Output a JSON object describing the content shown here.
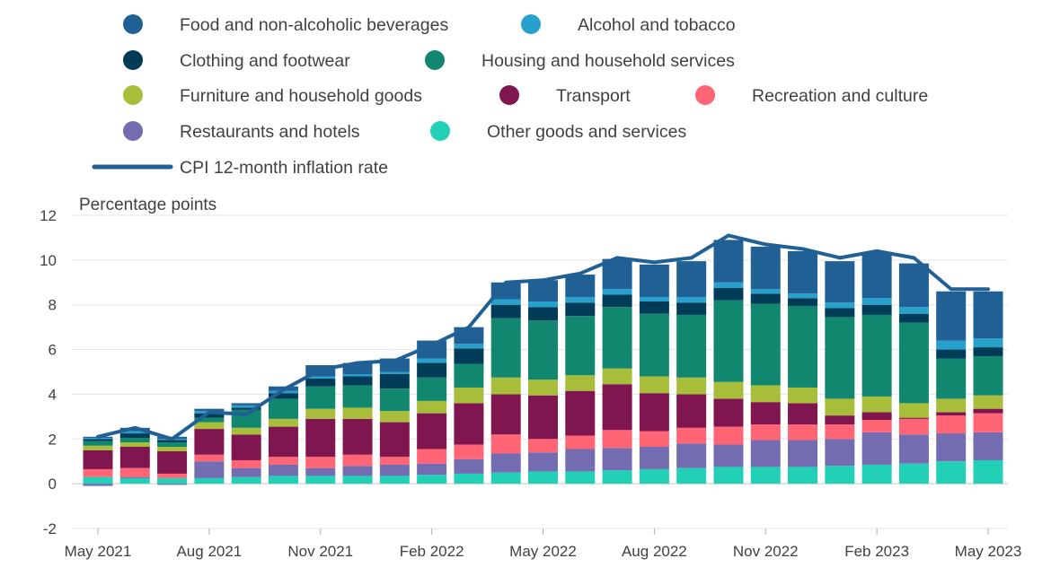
{
  "chart_data": {
    "type": "bar",
    "stacked": true,
    "ylabel": "Percentage points",
    "ylim": [
      -2,
      12
    ],
    "yticks": [
      -2,
      0,
      2,
      4,
      6,
      8,
      10,
      12
    ],
    "grid": true,
    "legend_position": "top",
    "categories": [
      "May 2021",
      "Jun 2021",
      "Jul 2021",
      "Aug 2021",
      "Sep 2021",
      "Oct 2021",
      "Nov 2021",
      "Dec 2021",
      "Jan 2022",
      "Feb 2022",
      "Mar 2022",
      "Apr 2022",
      "May 2022",
      "Jun 2022",
      "Jul 2022",
      "Aug 2022",
      "Sep 2022",
      "Oct 2022",
      "Nov 2022",
      "Dec 2022",
      "Jan 2023",
      "Feb 2023",
      "Mar 2023",
      "Apr 2023",
      "May 2023"
    ],
    "xtick_labels": [
      {
        "index": 0,
        "label": "May 2021"
      },
      {
        "index": 3,
        "label": "Aug 2021"
      },
      {
        "index": 6,
        "label": "Nov 2021"
      },
      {
        "index": 9,
        "label": "Feb 2022"
      },
      {
        "index": 12,
        "label": "May 2022"
      },
      {
        "index": 15,
        "label": "Aug 2022"
      },
      {
        "index": 18,
        "label": "Nov 2022"
      },
      {
        "index": 21,
        "label": "Feb 2023"
      },
      {
        "index": 24,
        "label": "May 2023"
      }
    ],
    "series": [
      {
        "name": "Other goods and services",
        "color": "#22d0b6",
        "values": [
          0.3,
          0.25,
          0.25,
          0.25,
          0.3,
          0.35,
          0.35,
          0.35,
          0.35,
          0.4,
          0.45,
          0.5,
          0.55,
          0.55,
          0.6,
          0.65,
          0.7,
          0.75,
          0.75,
          0.75,
          0.8,
          0.85,
          0.9,
          1.0,
          1.05
        ]
      },
      {
        "name": "Restaurants and hotels",
        "color": "#746cb1",
        "values": [
          -0.1,
          0.05,
          -0.05,
          0.75,
          0.4,
          0.5,
          0.35,
          0.45,
          0.5,
          0.5,
          0.65,
          0.85,
          0.85,
          1.0,
          1.0,
          1.0,
          1.1,
          1.0,
          1.2,
          1.2,
          1.2,
          1.45,
          1.3,
          1.25,
          1.25
        ]
      },
      {
        "name": "Recreation and culture",
        "color": "#ff6575",
        "values": [
          0.35,
          0.4,
          0.2,
          0.3,
          0.35,
          0.35,
          0.5,
          0.5,
          0.35,
          0.65,
          0.65,
          0.85,
          0.6,
          0.6,
          0.8,
          0.7,
          0.7,
          0.8,
          0.7,
          0.7,
          0.65,
          0.55,
          0.7,
          0.8,
          0.85
        ]
      },
      {
        "name": "Transport",
        "color": "#801650",
        "values": [
          0.85,
          0.95,
          1.0,
          1.15,
          1.15,
          1.35,
          1.7,
          1.6,
          1.55,
          1.6,
          1.85,
          1.8,
          1.95,
          2.0,
          2.05,
          1.7,
          1.5,
          1.25,
          1.0,
          0.95,
          0.4,
          0.35,
          0.05,
          0.15,
          0.2
        ]
      },
      {
        "name": "Furniture and household goods",
        "color": "#a8bd3a",
        "values": [
          0.2,
          0.2,
          0.2,
          0.3,
          0.3,
          0.35,
          0.45,
          0.5,
          0.5,
          0.55,
          0.7,
          0.75,
          0.7,
          0.7,
          0.7,
          0.75,
          0.75,
          0.75,
          0.75,
          0.7,
          0.75,
          0.7,
          0.65,
          0.6,
          0.6
        ]
      },
      {
        "name": "Housing and household services",
        "color": "#12876f",
        "values": [
          0.2,
          0.2,
          0.2,
          0.2,
          0.8,
          0.9,
          1.0,
          1.0,
          1.0,
          1.05,
          1.05,
          2.65,
          2.65,
          2.65,
          2.75,
          2.8,
          2.8,
          3.65,
          3.65,
          3.65,
          3.65,
          3.65,
          3.6,
          1.8,
          1.75
        ]
      },
      {
        "name": "Clothing and footwear",
        "color": "#003c57",
        "values": [
          0.1,
          0.2,
          0.1,
          0.2,
          0.1,
          0.25,
          0.35,
          0.4,
          0.65,
          0.65,
          0.7,
          0.6,
          0.6,
          0.6,
          0.55,
          0.55,
          0.55,
          0.55,
          0.45,
          0.35,
          0.4,
          0.45,
          0.4,
          0.4,
          0.4
        ]
      },
      {
        "name": "Alcohol and tobacco",
        "color": "#27a0cc",
        "values": [
          0.05,
          0.1,
          0.05,
          0.1,
          0.1,
          0.1,
          0.1,
          0.1,
          0.1,
          0.2,
          0.2,
          0.25,
          0.25,
          0.25,
          0.25,
          0.2,
          0.25,
          0.25,
          0.2,
          0.2,
          0.25,
          0.3,
          0.3,
          0.4,
          0.4
        ]
      },
      {
        "name": "Food and non-alcoholic beverages",
        "color": "#206095",
        "values": [
          0.05,
          0.15,
          0.1,
          0.1,
          0.1,
          0.2,
          0.5,
          0.5,
          0.6,
          0.8,
          0.75,
          0.75,
          0.95,
          1.0,
          1.35,
          1.45,
          1.6,
          1.9,
          1.9,
          1.9,
          1.85,
          2.05,
          1.95,
          2.2,
          2.1
        ]
      }
    ],
    "line": {
      "name": "CPI 12-month inflation rate",
      "color": "#206095",
      "values": [
        2.1,
        2.5,
        2.0,
        3.2,
        3.1,
        4.2,
        5.1,
        5.4,
        5.5,
        6.2,
        7.0,
        9.0,
        9.1,
        9.4,
        10.1,
        9.9,
        10.1,
        11.1,
        10.7,
        10.5,
        10.1,
        10.4,
        10.1,
        8.7,
        8.7
      ]
    },
    "legend": [
      {
        "name": "Food and non-alcoholic beverages",
        "color": "#206095",
        "shape": "circle"
      },
      {
        "name": "Alcohol and tobacco",
        "color": "#27a0cc",
        "shape": "circle"
      },
      {
        "name": "Clothing and footwear",
        "color": "#003c57",
        "shape": "circle"
      },
      {
        "name": "Housing and household services",
        "color": "#12876f",
        "shape": "circle"
      },
      {
        "name": "Furniture and household goods",
        "color": "#a8bd3a",
        "shape": "circle"
      },
      {
        "name": "Transport",
        "color": "#801650",
        "shape": "circle"
      },
      {
        "name": "Recreation and culture",
        "color": "#ff6575",
        "shape": "circle"
      },
      {
        "name": "Restaurants and hotels",
        "color": "#746cb1",
        "shape": "circle"
      },
      {
        "name": "Other goods and services",
        "color": "#22d0b6",
        "shape": "circle"
      },
      {
        "name": "CPI 12-month inflation rate",
        "color": "#206095",
        "shape": "line"
      }
    ]
  }
}
